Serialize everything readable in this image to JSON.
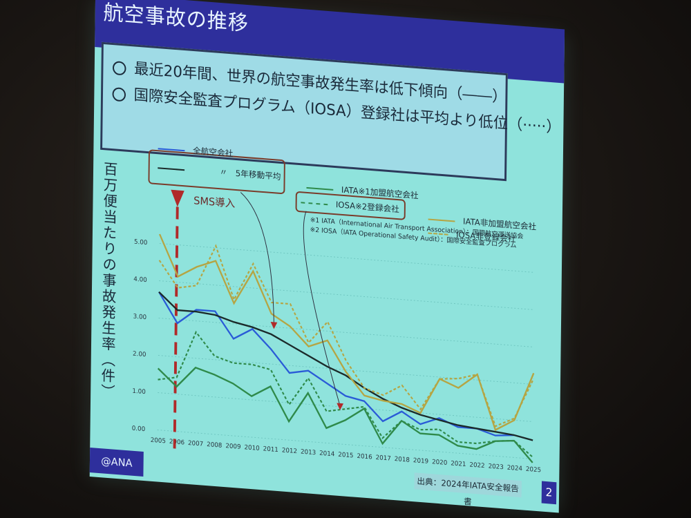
{
  "slide": {
    "title": "航空事故の推移",
    "bullets": [
      "最近20年間、世界の航空事故発生率は低下傾向（――）",
      "国際安全監査プログラム（IOSA）登録社は平均より低位（·····）"
    ],
    "y_axis_title": "百万便当たりの事故発生率（件）",
    "sms_marker": {
      "label": "SMS導入",
      "year": "2006"
    },
    "legend": {
      "all_airlines": "全航空会社",
      "moving_avg": "〃　5年移動平均",
      "iata_members": "IATA※1加盟航空会社",
      "iosa_registered": "IOSA※2登録会社",
      "iata_non_members": "IATA非加盟航空会社",
      "iosa_non_registered": "IOSA非登録会社"
    },
    "notes": [
      "※1 IATA（International Air Transport Association）：国際航空運送協会",
      "※2 IOSA（IATA Operational Safety Audit）：国際安全監査プログラム"
    ],
    "footer_left": "@ANA",
    "source": "出典：2024年IATA安全報告書",
    "page_number": "2"
  },
  "colors": {
    "title_bar": "#2e2f9c",
    "slide_bg": "#8fe3dc",
    "all_airlines": "#2a5bd7",
    "moving_avg": "#1b2a2a",
    "iata_members": "#2f8a4a",
    "iata_non_members": "#b5a543",
    "sms": "#b02a2a"
  },
  "chart_data": {
    "type": "line",
    "title": "航空事故の推移",
    "xlabel": "",
    "ylabel": "百万便当たりの事故発生率（件）",
    "ylim": [
      0,
      5
    ],
    "yticks": [
      "0.00",
      "1.00",
      "2.00",
      "3.00",
      "4.00",
      "5.00"
    ],
    "grid": true,
    "legend_position": "top",
    "x": [
      "2005",
      "2006",
      "2007",
      "2008",
      "2009",
      "2010",
      "2011",
      "2012",
      "2013",
      "2014",
      "2015",
      "2016",
      "2017",
      "2018",
      "2019",
      "2020",
      "2021",
      "2022",
      "2023",
      "2024",
      "2025"
    ],
    "series": [
      {
        "name": "全航空会社",
        "style": "solid",
        "color": "#2a5bd7",
        "values": [
          3.7,
          2.9,
          3.3,
          3.3,
          2.6,
          2.9,
          2.4,
          1.8,
          1.9,
          1.6,
          1.3,
          1.2,
          0.7,
          1.0,
          0.7,
          0.9,
          0.7,
          0.7,
          0.55,
          0.6,
          null
        ]
      },
      {
        "name": "全航空会社 5年移動平均",
        "style": "solid",
        "color": "#1b2a2a",
        "values": [
          3.7,
          3.25,
          3.25,
          3.2,
          3.05,
          2.95,
          2.8,
          2.55,
          2.3,
          2.05,
          1.85,
          1.55,
          1.3,
          1.1,
          0.95,
          0.85,
          0.75,
          0.7,
          0.65,
          0.6,
          0.5
        ]
      },
      {
        "name": "IATA加盟航空会社",
        "style": "solid",
        "color": "#2f8a4a",
        "values": [
          1.65,
          1.2,
          1.75,
          1.6,
          1.4,
          1.1,
          1.4,
          0.5,
          1.3,
          0.4,
          0.65,
          1.0,
          0.1,
          0.75,
          0.45,
          0.45,
          0.2,
          0.15,
          0.4,
          0.45,
          -0.1
        ]
      },
      {
        "name": "IOSA登録会社",
        "style": "dashed",
        "color": "#2f8a4a",
        "values": [
          1.35,
          1.45,
          2.7,
          2.1,
          1.95,
          1.95,
          1.85,
          0.95,
          1.7,
          0.85,
          0.95,
          1.05,
          0.25,
          0.75,
          0.55,
          0.6,
          0.3,
          0.3,
          0.4,
          0.45,
          0.05
        ]
      },
      {
        "name": "IATA非加盟航空会社",
        "style": "solid",
        "color": "#b5a543",
        "values": [
          5.25,
          4.15,
          4.45,
          4.65,
          3.55,
          4.45,
          3.35,
          3.05,
          2.55,
          2.75,
          1.95,
          1.35,
          1.25,
          1.2,
          1.0,
          1.95,
          1.75,
          2.15,
          0.7,
          1.0,
          2.3
        ]
      },
      {
        "name": "IOSA非登録会社",
        "style": "dashed",
        "color": "#b5a543",
        "values": [
          4.55,
          3.85,
          3.95,
          5.05,
          3.65,
          4.65,
          3.65,
          3.65,
          2.65,
          3.25,
          2.25,
          1.55,
          1.4,
          1.7,
          1.1,
          1.95,
          2.0,
          2.15,
          0.8,
          1.05,
          2.15
        ]
      }
    ],
    "annotations": [
      "SMS導入 (2006)",
      "出典：2024年IATA安全報告書"
    ]
  }
}
